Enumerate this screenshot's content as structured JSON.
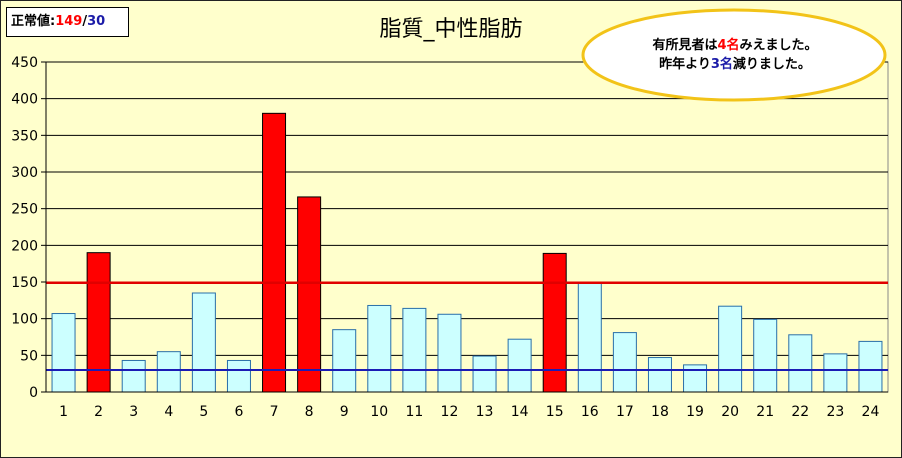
{
  "normal_box": {
    "label": "正常値:",
    "upper": "149",
    "sep": "/",
    "lower": "30"
  },
  "callout": {
    "line1_pre": "有所見者は",
    "line1_num": "4名",
    "line1_post": "みえました。",
    "line2_pre": "昨年より",
    "line2_num": "3名",
    "line2_post": "減りました。"
  },
  "colors": {
    "normal_bar": "#ccffff",
    "abnormal_bar": "#ff0000",
    "upper_line": "#e00000",
    "lower_line": "#1b1bb5",
    "plot_bg": "#ffffcc"
  },
  "chart_data": {
    "type": "bar",
    "title": "脂質_中性脂肪",
    "categories": [
      "1",
      "2",
      "3",
      "4",
      "5",
      "6",
      "7",
      "8",
      "9",
      "10",
      "11",
      "12",
      "13",
      "14",
      "15",
      "16",
      "17",
      "18",
      "19",
      "20",
      "21",
      "22",
      "23",
      "24"
    ],
    "values": [
      107,
      190,
      43,
      55,
      135,
      43,
      380,
      266,
      85,
      118,
      114,
      106,
      49,
      72,
      189,
      148,
      81,
      47,
      37,
      117,
      99,
      78,
      52,
      69
    ],
    "ylim": [
      0,
      450
    ],
    "yticks": [
      0,
      50,
      100,
      150,
      200,
      250,
      300,
      350,
      400,
      450
    ],
    "reference_lines": [
      {
        "name": "upper",
        "value": 149
      },
      {
        "name": "lower",
        "value": 30
      }
    ],
    "grid": true,
    "xlabel": "",
    "ylabel": ""
  }
}
